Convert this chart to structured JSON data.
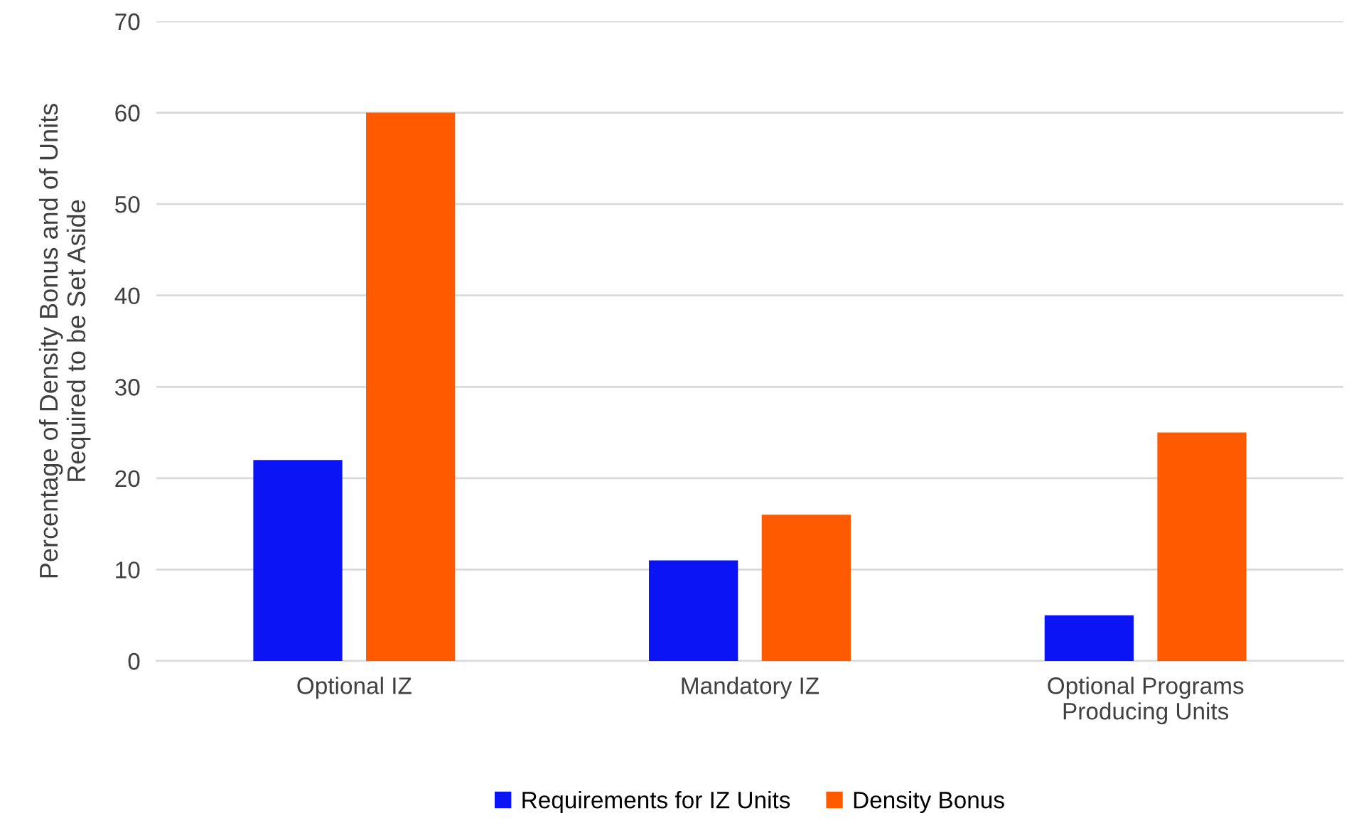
{
  "chart_data": {
    "type": "bar",
    "ylabel": "Percentage of Density Bonus and of Units\nRequired to be Set Aside",
    "categories": [
      "Optional IZ",
      "Mandatory IZ",
      "Optional Programs\nProducing Units"
    ],
    "series": [
      {
        "name": "Requirements for IZ Units",
        "color": "#0a14f5",
        "values": [
          22,
          11,
          5
        ]
      },
      {
        "name": "Density Bonus",
        "color": "#ff5a00",
        "values": [
          60,
          16,
          25
        ]
      }
    ],
    "ylim": [
      0,
      70
    ],
    "yticks": [
      0,
      10,
      20,
      30,
      40,
      50,
      60,
      70
    ],
    "grid": "y",
    "legend": "bottom"
  }
}
